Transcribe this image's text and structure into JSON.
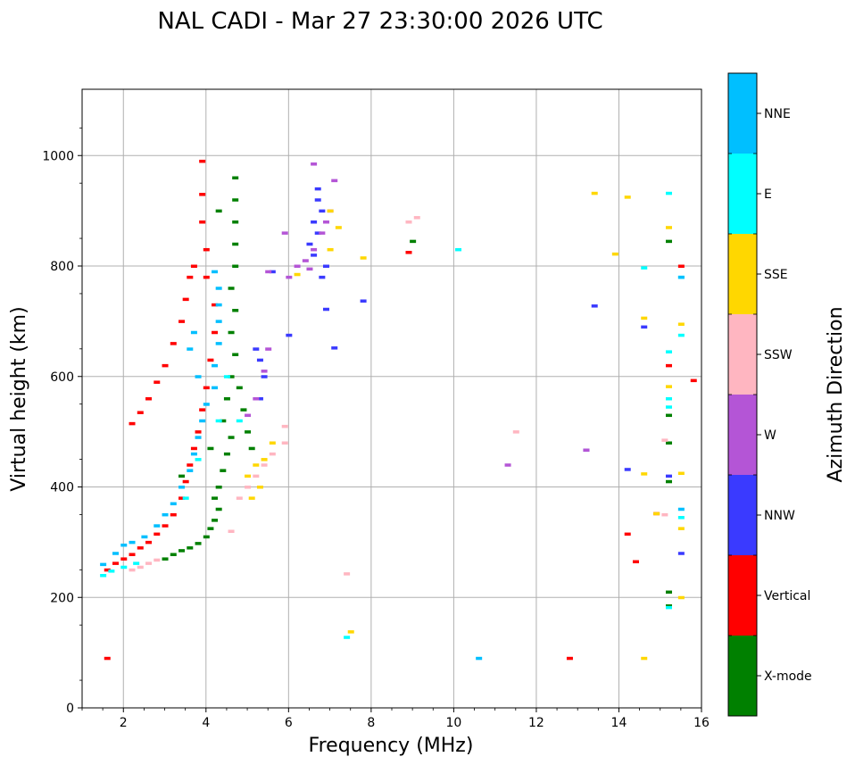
{
  "chart_data": {
    "type": "scatter",
    "title": "NAL CADI - Mar 27 23:30:00 2026 UTC",
    "xlabel": "Frequency (MHz)",
    "ylabel": "Virtual height (km)",
    "xlim": [
      1,
      16
    ],
    "ylim": [
      0,
      1120
    ],
    "xticks": [
      2,
      4,
      6,
      8,
      10,
      12,
      14,
      16
    ],
    "yticks": [
      0,
      200,
      400,
      600,
      800,
      1000
    ],
    "grid": true,
    "colorbar": {
      "label": "Azimuth Direction",
      "categories": [
        {
          "name": "X-mode",
          "color": "#008000"
        },
        {
          "name": "Vertical",
          "color": "#ff0000"
        },
        {
          "name": "NNW",
          "color": "#3a3aff"
        },
        {
          "name": "W",
          "color": "#b455d6"
        },
        {
          "name": "SSW",
          "color": "#ffb6c1"
        },
        {
          "name": "SSE",
          "color": "#ffd700"
        },
        {
          "name": "E",
          "color": "#00ffff"
        },
        {
          "name": "NNE",
          "color": "#00bfff"
        }
      ]
    },
    "series": [
      {
        "name": "X-mode",
        "points": [
          [
            3.0,
            270
          ],
          [
            3.2,
            278
          ],
          [
            3.4,
            285
          ],
          [
            3.6,
            290
          ],
          [
            3.8,
            298
          ],
          [
            4.0,
            310
          ],
          [
            4.1,
            325
          ],
          [
            4.2,
            340
          ],
          [
            4.3,
            360
          ],
          [
            4.2,
            380
          ],
          [
            4.3,
            400
          ],
          [
            4.4,
            430
          ],
          [
            4.5,
            460
          ],
          [
            4.6,
            490
          ],
          [
            4.4,
            520
          ],
          [
            4.5,
            560
          ],
          [
            4.6,
            600
          ],
          [
            4.7,
            640
          ],
          [
            4.6,
            680
          ],
          [
            4.7,
            720
          ],
          [
            4.6,
            760
          ],
          [
            4.7,
            800
          ],
          [
            4.7,
            840
          ],
          [
            4.7,
            880
          ],
          [
            4.7,
            920
          ],
          [
            4.7,
            960
          ],
          [
            4.3,
            900
          ],
          [
            4.8,
            580
          ],
          [
            5.0,
            500
          ],
          [
            5.1,
            470
          ],
          [
            4.9,
            540
          ],
          [
            9.0,
            845
          ],
          [
            15.2,
            845
          ],
          [
            15.2,
            530
          ],
          [
            15.2,
            480
          ],
          [
            15.2,
            410
          ],
          [
            15.2,
            210
          ],
          [
            15.2,
            185
          ],
          [
            3.4,
            420
          ],
          [
            4.1,
            470
          ]
        ]
      },
      {
        "name": "Vertical",
        "points": [
          [
            1.6,
            250
          ],
          [
            1.8,
            262
          ],
          [
            2.0,
            270
          ],
          [
            2.2,
            278
          ],
          [
            2.4,
            290
          ],
          [
            2.6,
            300
          ],
          [
            2.8,
            315
          ],
          [
            3.0,
            330
          ],
          [
            3.2,
            350
          ],
          [
            3.4,
            380
          ],
          [
            3.5,
            410
          ],
          [
            3.6,
            440
          ],
          [
            3.7,
            470
          ],
          [
            3.8,
            500
          ],
          [
            3.9,
            540
          ],
          [
            4.0,
            580
          ],
          [
            4.1,
            630
          ],
          [
            4.2,
            680
          ],
          [
            4.2,
            730
          ],
          [
            4.0,
            780
          ],
          [
            4.0,
            830
          ],
          [
            3.9,
            880
          ],
          [
            3.9,
            930
          ],
          [
            3.9,
            990
          ],
          [
            2.2,
            515
          ],
          [
            2.4,
            535
          ],
          [
            2.6,
            560
          ],
          [
            2.8,
            590
          ],
          [
            3.0,
            620
          ],
          [
            3.2,
            660
          ],
          [
            3.4,
            700
          ],
          [
            3.5,
            740
          ],
          [
            3.6,
            780
          ],
          [
            3.7,
            800
          ],
          [
            1.6,
            90
          ],
          [
            12.8,
            90
          ],
          [
            14.2,
            315
          ],
          [
            14.4,
            265
          ],
          [
            14.9,
            352
          ],
          [
            15.2,
            620
          ],
          [
            15.5,
            800
          ],
          [
            15.8,
            593
          ],
          [
            8.9,
            825
          ]
        ]
      },
      {
        "name": "NNW",
        "points": [
          [
            5.3,
            560
          ],
          [
            5.4,
            600
          ],
          [
            5.3,
            630
          ],
          [
            5.2,
            650
          ],
          [
            5.6,
            790
          ],
          [
            6.6,
            880
          ],
          [
            6.8,
            900
          ],
          [
            6.7,
            860
          ],
          [
            6.6,
            820
          ],
          [
            6.9,
            800
          ],
          [
            6.8,
            780
          ],
          [
            6.5,
            840
          ],
          [
            6.7,
            920
          ],
          [
            6.7,
            940
          ],
          [
            7.8,
            737
          ],
          [
            7.1,
            652
          ],
          [
            6.9,
            722
          ],
          [
            6.0,
            675
          ],
          [
            13.4,
            728
          ],
          [
            14.6,
            690
          ],
          [
            14.2,
            432
          ],
          [
            13.2,
            467
          ],
          [
            15.2,
            420
          ],
          [
            15.5,
            280
          ]
        ]
      },
      {
        "name": "W",
        "points": [
          [
            6.0,
            780
          ],
          [
            6.2,
            800
          ],
          [
            6.4,
            810
          ],
          [
            6.5,
            795
          ],
          [
            6.6,
            830
          ],
          [
            6.8,
            860
          ],
          [
            6.9,
            880
          ],
          [
            7.0,
            900
          ],
          [
            6.6,
            985
          ],
          [
            7.1,
            955
          ],
          [
            5.5,
            790
          ],
          [
            5.9,
            860
          ],
          [
            5.0,
            530
          ],
          [
            5.2,
            560
          ],
          [
            5.4,
            610
          ],
          [
            5.5,
            650
          ],
          [
            11.3,
            440
          ],
          [
            13.2,
            467
          ]
        ]
      },
      {
        "name": "SSW",
        "points": [
          [
            4.8,
            380
          ],
          [
            5.0,
            400
          ],
          [
            5.2,
            420
          ],
          [
            5.4,
            440
          ],
          [
            5.6,
            460
          ],
          [
            5.9,
            480
          ],
          [
            5.9,
            510
          ],
          [
            2.2,
            250
          ],
          [
            2.4,
            255
          ],
          [
            2.6,
            262
          ],
          [
            2.8,
            268
          ],
          [
            4.6,
            320
          ],
          [
            8.9,
            880
          ],
          [
            9.1,
            888
          ],
          [
            11.5,
            500
          ],
          [
            7.4,
            243
          ],
          [
            15.1,
            485
          ],
          [
            15.1,
            350
          ]
        ]
      },
      {
        "name": "SSE",
        "points": [
          [
            5.0,
            420
          ],
          [
            5.2,
            440
          ],
          [
            5.4,
            450
          ],
          [
            5.3,
            400
          ],
          [
            5.1,
            380
          ],
          [
            5.6,
            480
          ],
          [
            7.0,
            830
          ],
          [
            7.2,
            870
          ],
          [
            7.0,
            900
          ],
          [
            6.2,
            785
          ],
          [
            7.8,
            815
          ],
          [
            7.5,
            138
          ],
          [
            13.4,
            932
          ],
          [
            14.2,
            925
          ],
          [
            13.9,
            822
          ],
          [
            14.6,
            706
          ],
          [
            14.6,
            424
          ],
          [
            14.9,
            352
          ],
          [
            15.2,
            870
          ],
          [
            15.5,
            695
          ],
          [
            15.5,
            425
          ],
          [
            15.5,
            325
          ],
          [
            15.5,
            200
          ],
          [
            14.6,
            90
          ],
          [
            15.2,
            582
          ]
        ]
      },
      {
        "name": "E",
        "points": [
          [
            1.5,
            240
          ],
          [
            1.7,
            248
          ],
          [
            2.0,
            255
          ],
          [
            2.3,
            262
          ],
          [
            3.5,
            380
          ],
          [
            3.8,
            450
          ],
          [
            4.3,
            520
          ],
          [
            4.5,
            600
          ],
          [
            4.8,
            520
          ],
          [
            10.1,
            830
          ],
          [
            14.6,
            797
          ],
          [
            15.2,
            932
          ],
          [
            15.2,
            645
          ],
          [
            15.2,
            560
          ],
          [
            15.2,
            545
          ],
          [
            15.5,
            675
          ],
          [
            15.5,
            780
          ],
          [
            15.5,
            345
          ],
          [
            15.2,
            182
          ],
          [
            7.4,
            128
          ]
        ]
      },
      {
        "name": "NNE",
        "points": [
          [
            1.5,
            260
          ],
          [
            1.8,
            280
          ],
          [
            2.0,
            295
          ],
          [
            2.2,
            300
          ],
          [
            2.5,
            310
          ],
          [
            2.8,
            330
          ],
          [
            3.0,
            350
          ],
          [
            3.2,
            370
          ],
          [
            3.4,
            400
          ],
          [
            3.6,
            430
          ],
          [
            3.7,
            460
          ],
          [
            3.8,
            490
          ],
          [
            3.9,
            520
          ],
          [
            4.0,
            550
          ],
          [
            4.2,
            580
          ],
          [
            4.2,
            620
          ],
          [
            4.3,
            660
          ],
          [
            4.3,
            700
          ],
          [
            4.3,
            730
          ],
          [
            4.3,
            760
          ],
          [
            4.2,
            790
          ],
          [
            3.7,
            680
          ],
          [
            3.6,
            650
          ],
          [
            3.8,
            600
          ],
          [
            10.6,
            90
          ],
          [
            15.5,
            360
          ],
          [
            15.5,
            780
          ]
        ]
      }
    ]
  }
}
